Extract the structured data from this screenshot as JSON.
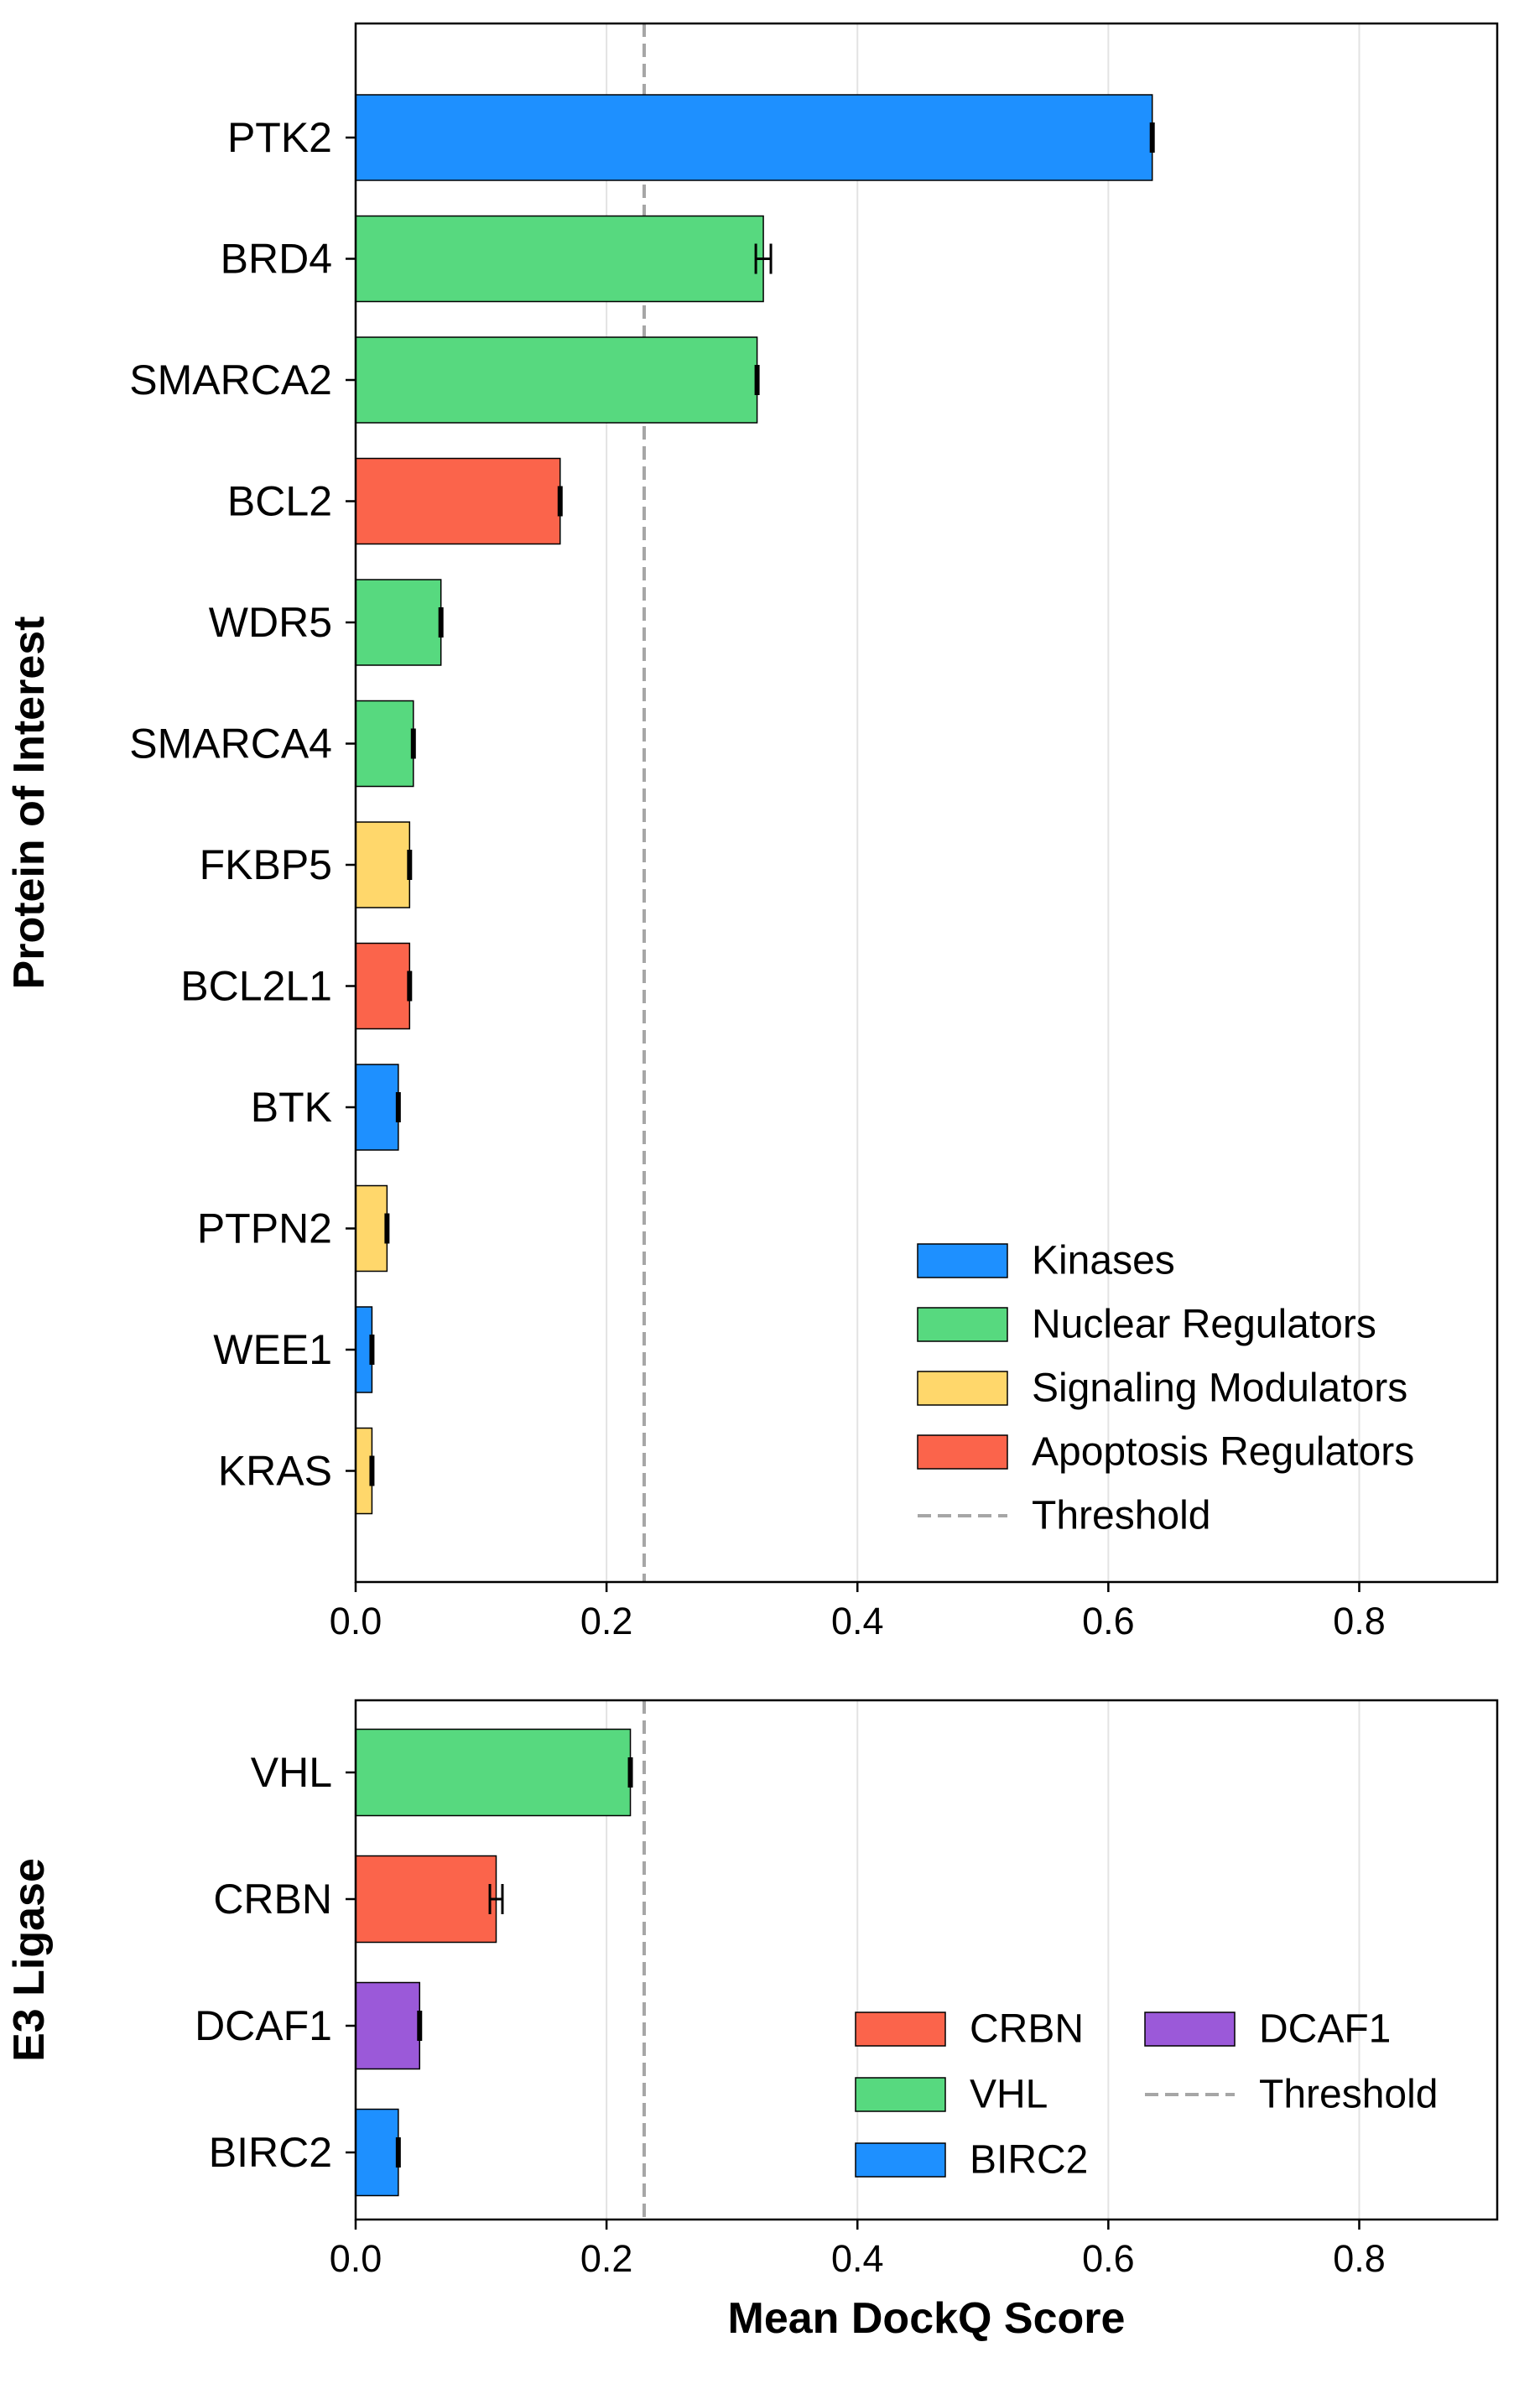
{
  "chart_data": [
    {
      "type": "bar",
      "orientation": "horizontal",
      "ylabel": "Protein of Interest",
      "xlabel": "",
      "xlim": [
        0,
        0.91
      ],
      "xticks": [
        "0.0",
        "0.2",
        "0.4",
        "0.6",
        "0.8"
      ],
      "tick_values": [
        0,
        0.2,
        0.4,
        0.6,
        0.8
      ],
      "grid": "vertical",
      "threshold": 0.23,
      "legend_position": "lower-right",
      "groups": [
        {
          "name": "Kinases",
          "color": "#1e90ff"
        },
        {
          "name": "Nuclear Regulators",
          "color": "#57d97f"
        },
        {
          "name": "Signaling Modulators",
          "color": "#ffd76b"
        },
        {
          "name": "Apoptosis Regulators",
          "color": "#fb644b"
        }
      ],
      "threshold_label": "Threshold",
      "bars": [
        {
          "label": "PTK2",
          "value": 0.635,
          "error": 0.001,
          "group": "Kinases",
          "color": "#1e90ff"
        },
        {
          "label": "BRD4",
          "value": 0.325,
          "error": 0.006,
          "group": "Nuclear Regulators",
          "color": "#57d97f"
        },
        {
          "label": "SMARCA2",
          "value": 0.32,
          "error": 0.001,
          "group": "Nuclear Regulators",
          "color": "#57d97f"
        },
        {
          "label": "BCL2",
          "value": 0.163,
          "error": 0.001,
          "group": "Apoptosis Regulators",
          "color": "#fb644b"
        },
        {
          "label": "WDR5",
          "value": 0.068,
          "error": 0.001,
          "group": "Nuclear Regulators",
          "color": "#57d97f"
        },
        {
          "label": "SMARCA4",
          "value": 0.046,
          "error": 0.001,
          "group": "Nuclear Regulators",
          "color": "#57d97f"
        },
        {
          "label": "FKBP5",
          "value": 0.043,
          "error": 0.001,
          "group": "Signaling Modulators",
          "color": "#ffd76b"
        },
        {
          "label": "BCL2L1",
          "value": 0.043,
          "error": 0.001,
          "group": "Apoptosis Regulators",
          "color": "#fb644b"
        },
        {
          "label": "BTK",
          "value": 0.034,
          "error": 0.001,
          "group": "Kinases",
          "color": "#1e90ff"
        },
        {
          "label": "PTPN2",
          "value": 0.025,
          "error": 0.001,
          "group": "Signaling Modulators",
          "color": "#ffd76b"
        },
        {
          "label": "WEE1",
          "value": 0.013,
          "error": 0.001,
          "group": "Kinases",
          "color": "#1e90ff"
        },
        {
          "label": "KRAS",
          "value": 0.013,
          "error": 0.001,
          "group": "Signaling Modulators",
          "color": "#ffd76b"
        }
      ]
    },
    {
      "type": "bar",
      "orientation": "horizontal",
      "ylabel": "E3 Ligase",
      "xlabel": "Mean DockQ Score",
      "xlim": [
        0,
        0.91
      ],
      "xticks": [
        "0.0",
        "0.2",
        "0.4",
        "0.6",
        "0.8"
      ],
      "tick_values": [
        0,
        0.2,
        0.4,
        0.6,
        0.8
      ],
      "grid": "vertical",
      "threshold": 0.23,
      "legend_position": "lower-right",
      "legend_columns": 2,
      "groups": [
        {
          "name": "CRBN",
          "color": "#fb644b"
        },
        {
          "name": "VHL",
          "color": "#57d97f"
        },
        {
          "name": "BIRC2",
          "color": "#1e90ff"
        },
        {
          "name": "DCAF1",
          "color": "#9b59d9"
        }
      ],
      "threshold_label": "Threshold",
      "bars": [
        {
          "label": "VHL",
          "value": 0.219,
          "error": 0.001,
          "group": "VHL",
          "color": "#57d97f"
        },
        {
          "label": "CRBN",
          "value": 0.112,
          "error": 0.005,
          "group": "CRBN",
          "color": "#fb644b"
        },
        {
          "label": "DCAF1",
          "value": 0.051,
          "error": 0.001,
          "group": "DCAF1",
          "color": "#9b59d9"
        },
        {
          "label": "BIRC2",
          "value": 0.034,
          "error": 0.001,
          "group": "BIRC2",
          "color": "#1e90ff"
        }
      ]
    }
  ]
}
